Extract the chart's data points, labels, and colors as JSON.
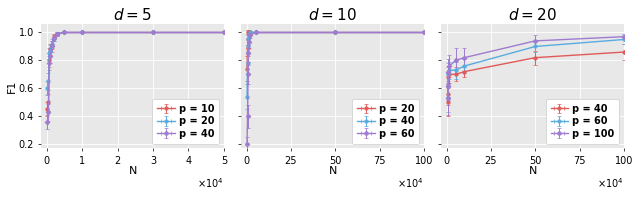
{
  "panels": [
    {
      "title": "$d = 5$",
      "xlabel": "N",
      "ylabel": "F1",
      "xlim": [
        -1500,
        50000
      ],
      "ylim": [
        0.17,
        1.06
      ],
      "xticks": [
        0,
        10000,
        20000,
        30000,
        40000,
        50000
      ],
      "xticklabels": [
        "0",
        "1",
        "2",
        "3",
        "4",
        "5"
      ],
      "xscale_label": "$\\times10^4$",
      "yticks": [
        0.2,
        0.4,
        0.6,
        0.8,
        1.0
      ],
      "yticklabels": [
        "0.2",
        "0.4",
        "0.6",
        "0.8",
        "1.0"
      ],
      "series": [
        {
          "label": "p = 10",
          "color": "#e05a5a",
          "marker": "o",
          "x": [
            200,
            500,
            700,
            1000,
            1500,
            2000,
            3000,
            5000,
            10000,
            30000,
            50000
          ],
          "y": [
            0.45,
            0.5,
            0.8,
            0.88,
            0.91,
            0.97,
            0.99,
            1.0,
            1.0,
            1.0,
            1.0
          ],
          "yerr": [
            0.05,
            0.06,
            0.05,
            0.04,
            0.03,
            0.02,
            0.01,
            0.0,
            0.0,
            0.0,
            0.0
          ],
          "xerr": [
            100,
            150,
            200,
            200,
            300,
            300,
            400,
            0,
            0,
            0,
            0
          ]
        },
        {
          "label": "p = 20",
          "color": "#5aabe0",
          "marker": "o",
          "x": [
            200,
            500,
            700,
            1000,
            1500,
            2000,
            3000,
            5000,
            10000,
            30000,
            50000
          ],
          "y": [
            0.6,
            0.65,
            0.85,
            0.87,
            0.92,
            0.96,
            0.99,
            1.0,
            1.0,
            1.0,
            1.0
          ],
          "yerr": [
            0.05,
            0.06,
            0.04,
            0.04,
            0.03,
            0.02,
            0.01,
            0.0,
            0.0,
            0.0,
            0.0
          ],
          "xerr": [
            100,
            150,
            200,
            200,
            300,
            300,
            400,
            0,
            0,
            0,
            0
          ]
        },
        {
          "label": "p = 40",
          "color": "#a07bd0",
          "marker": "D",
          "x": [
            200,
            500,
            700,
            1000,
            1500,
            2000,
            3000,
            5000,
            10000,
            30000,
            50000
          ],
          "y": [
            0.36,
            0.43,
            0.78,
            0.83,
            0.9,
            0.96,
            0.99,
            1.0,
            1.0,
            1.0,
            1.0
          ],
          "yerr": [
            0.05,
            0.06,
            0.05,
            0.05,
            0.04,
            0.02,
            0.01,
            0.0,
            0.0,
            0.0,
            0.0
          ],
          "xerr": [
            100,
            150,
            200,
            200,
            300,
            300,
            400,
            0,
            0,
            0,
            0
          ]
        }
      ]
    },
    {
      "title": "$d = 10$",
      "xlabel": "N",
      "ylabel": "",
      "xlim": [
        -30000,
        1000000
      ],
      "ylim": [
        0.17,
        1.06
      ],
      "xticks": [
        0,
        250000,
        500000,
        750000,
        1000000
      ],
      "xticklabels": [
        "0",
        "25",
        "50",
        "75",
        "100"
      ],
      "xscale_label": "$\\times10^4$",
      "yticks": [
        0.2,
        0.4,
        0.6,
        0.8,
        1.0
      ],
      "yticklabels": [],
      "series": [
        {
          "label": "p = 20",
          "color": "#e05a5a",
          "marker": "o",
          "x": [
            2000,
            5000,
            8000,
            10000,
            15000,
            20000,
            50000,
            500000,
            1000000
          ],
          "y": [
            0.74,
            0.89,
            0.95,
            1.0,
            1.0,
            1.0,
            1.0,
            1.0,
            1.0
          ],
          "yerr": [
            0.09,
            0.06,
            0.04,
            0.02,
            0.0,
            0.0,
            0.0,
            0.0,
            0.0
          ],
          "xerr": [
            500,
            1000,
            1500,
            2000,
            0,
            0,
            0,
            0,
            0
          ]
        },
        {
          "label": "p = 40",
          "color": "#5aabe0",
          "marker": "o",
          "x": [
            2000,
            5000,
            8000,
            10000,
            15000,
            20000,
            50000,
            500000,
            1000000
          ],
          "y": [
            0.54,
            0.78,
            0.9,
            0.95,
            0.98,
            1.0,
            1.0,
            1.0,
            1.0
          ],
          "yerr": [
            0.09,
            0.08,
            0.05,
            0.04,
            0.02,
            0.01,
            0.0,
            0.0,
            0.0
          ],
          "xerr": [
            500,
            1000,
            1500,
            2000,
            0,
            0,
            0,
            0,
            0
          ]
        },
        {
          "label": "p = 60",
          "color": "#a07bd0",
          "marker": "D",
          "x": [
            2000,
            5000,
            8000,
            10000,
            15000,
            20000,
            50000,
            500000,
            1000000
          ],
          "y": [
            0.2,
            0.4,
            0.7,
            0.85,
            0.93,
            0.98,
            1.0,
            1.0,
            1.0
          ],
          "yerr": [
            0.05,
            0.08,
            0.07,
            0.06,
            0.04,
            0.02,
            0.0,
            0.0,
            0.0
          ],
          "xerr": [
            500,
            1000,
            1500,
            2000,
            0,
            0,
            0,
            0,
            0
          ]
        }
      ]
    },
    {
      "title": "$d = 20$",
      "xlabel": "N",
      "ylabel": "",
      "xlim": [
        -30000,
        1000000
      ],
      "ylim": [
        0.17,
        1.06
      ],
      "xticks": [
        0,
        250000,
        500000,
        750000,
        1000000
      ],
      "xticklabels": [
        "0",
        "25",
        "50",
        "75",
        "100"
      ],
      "xscale_label": "$\\times10^4$",
      "yticks": [
        0.2,
        0.4,
        0.6,
        0.8,
        1.0
      ],
      "yticklabels": [],
      "series": [
        {
          "label": "p = 40",
          "color": "#e05a5a",
          "marker": "o",
          "x": [
            5000,
            8000,
            10000,
            15000,
            50000,
            100000,
            500000,
            1000000
          ],
          "y": [
            0.5,
            0.56,
            0.68,
            0.7,
            0.7,
            0.72,
            0.82,
            0.86
          ],
          "yerr": [
            0.1,
            0.08,
            0.07,
            0.06,
            0.05,
            0.04,
            0.05,
            0.06
          ],
          "xerr": [
            1000,
            1500,
            2000,
            2000,
            5000,
            0,
            0,
            0
          ]
        },
        {
          "label": "p = 60",
          "color": "#5aabe0",
          "marker": "o",
          "x": [
            5000,
            8000,
            10000,
            15000,
            50000,
            100000,
            500000,
            1000000
          ],
          "y": [
            0.53,
            0.62,
            0.7,
            0.73,
            0.73,
            0.76,
            0.9,
            0.95
          ],
          "yerr": [
            0.1,
            0.09,
            0.08,
            0.06,
            0.06,
            0.05,
            0.04,
            0.03
          ],
          "xerr": [
            1000,
            1500,
            2000,
            2000,
            5000,
            0,
            0,
            0
          ]
        },
        {
          "label": "p = 100",
          "color": "#a07bd0",
          "marker": "D",
          "x": [
            5000,
            8000,
            10000,
            15000,
            50000,
            100000,
            500000,
            1000000
          ],
          "y": [
            0.53,
            0.62,
            0.72,
            0.76,
            0.8,
            0.82,
            0.94,
            0.97
          ],
          "yerr": [
            0.12,
            0.1,
            0.09,
            0.08,
            0.09,
            0.07,
            0.04,
            0.02
          ],
          "xerr": [
            1000,
            1500,
            2000,
            2000,
            5000,
            0,
            0,
            0
          ]
        }
      ]
    }
  ],
  "bg_color": "#e8e8e8",
  "legend_fontsize": 7,
  "tick_fontsize": 7,
  "axis_label_fontsize": 8,
  "title_fontsize": 11
}
